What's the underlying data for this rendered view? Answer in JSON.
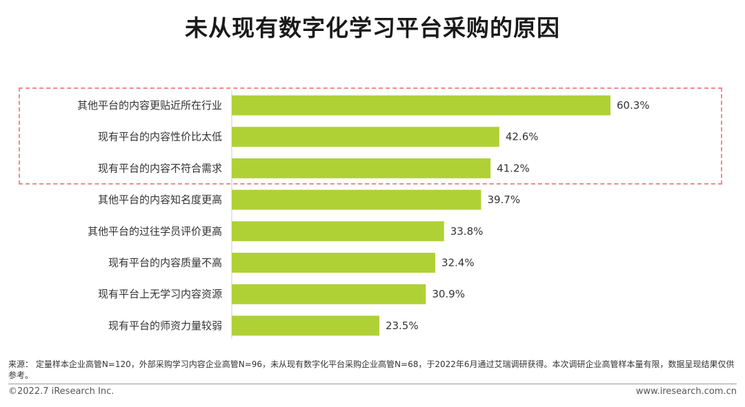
{
  "title": "未从现有数字化学习平台采购的原因",
  "colors": {
    "bar": "#b0d136",
    "highlight_border": "#f08a8a",
    "axis": "#cccccc",
    "text": "#333333"
  },
  "chart_data": {
    "type": "bar",
    "orientation": "horizontal",
    "categories": [
      "其他平台的内容更贴近所在行业",
      "现有平台的内容性价比太低",
      "现有平台的内容不符合需求",
      "其他平台的内容知名度更高",
      "其他平台的过往学员评价更高",
      "现有平台的内容质量不高",
      "现有平台上无学习内容资源",
      "现有平台的师资力量较弱"
    ],
    "values": [
      60.3,
      42.6,
      41.2,
      39.7,
      33.8,
      32.4,
      30.9,
      23.5
    ],
    "value_labels": [
      "60.3%",
      "42.6%",
      "41.2%",
      "39.7%",
      "33.8%",
      "32.4%",
      "30.9%",
      "23.5%"
    ],
    "unit": "%",
    "xlim": [
      0,
      60.3
    ],
    "highlighted_categories": [
      0,
      1,
      2
    ],
    "grid": false,
    "legend": "none"
  },
  "footer": {
    "source": "来源：  定量样本企业高管N=120，外部采购学习内容企业高管N=96，未从现有数字化平台采购企业高管N=68，于2022年6月通过艾瑞调研获得。本次调研企业高管样本量有限，数据呈现结果仅供参考。",
    "copyright": "©2022.7 iResearch Inc.",
    "website": "www.iresearch.com.cn"
  }
}
